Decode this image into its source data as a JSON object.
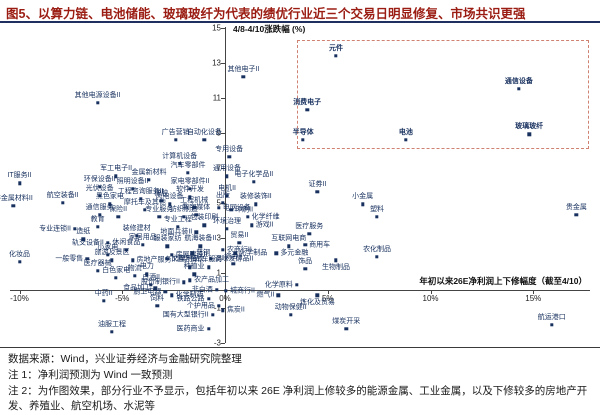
{
  "title": "图5、以算力链、电池储能、玻璃玻纤为代表的绩优行业近三个交易日明显修复、市场共识更强",
  "footer": {
    "source": "数据来源：Wind，兴业证券经济与金融研究院整理",
    "note1": "注 1：净利润预测为 Wind 一致预测",
    "note2": "注 2：为作图效果，部分行业不予显示，包括年初以来 26E 净利润上修较多的能源金属、工业金属，以及下修较多的房地产开发、养殖业、航空机场、水泥等"
  },
  "colors": {
    "title_red": "#9a1c12",
    "rule_navy": "#1f3060",
    "dot_navy": "#17305e",
    "box_dash": "#cf8272"
  },
  "chart_data": {
    "type": "scatter",
    "xlabel": "年初以来26E净利润上下修幅度（截至4/10）",
    "ylabel": "4/8-4/10涨跌幅 (%)",
    "xlim": [
      -11,
      18
    ],
    "ylim": [
      -3.5,
      15
    ],
    "x_ticks": [
      {
        "v": -10,
        "label": "-10%"
      },
      {
        "v": -5,
        "label": "-5%"
      },
      {
        "v": 0,
        "label": "0%"
      },
      {
        "v": 5,
        "label": "5%"
      },
      {
        "v": 10,
        "label": "10%"
      },
      {
        "v": 15,
        "label": "15%"
      }
    ],
    "y_ticks": [
      15,
      13,
      11,
      9,
      7,
      5,
      3,
      1,
      -1,
      -3
    ],
    "grid": false,
    "highlight_box": {
      "x_min": 3.5,
      "x_max": 17.6,
      "y_min": 8.2,
      "y_max": 14.3
    },
    "highlighted_industries": [
      "元件",
      "通信设备",
      "消费电子",
      "半导体",
      "电池",
      "玻璃玻纤"
    ],
    "points": [
      [
        "元件",
        5.4,
        13.4
      ],
      [
        "通信设备",
        14.3,
        11.5
      ],
      [
        "消费电子",
        4.0,
        10.3
      ],
      [
        "半导体",
        3.8,
        8.6
      ],
      [
        "电池",
        8.8,
        8.6
      ],
      [
        "玻璃玻纤",
        14.8,
        8.9
      ],
      [
        "其他电子II",
        0.9,
        12.2
      ],
      [
        "其他电源设备II",
        -6.2,
        10.7
      ],
      [
        "广告营销",
        -2.4,
        8.6
      ],
      [
        "自动化设备",
        -1.0,
        8.6
      ],
      [
        "计算机设备",
        -2.2,
        7.2
      ],
      [
        "专用设备",
        0.2,
        7.6
      ],
      [
        "军工电子II",
        -5.3,
        6.5
      ],
      [
        "汽车零部件",
        -1.8,
        6.7
      ],
      [
        "金属新材料",
        -3.7,
        6.3
      ],
      [
        "通用设备",
        0.1,
        6.5
      ],
      [
        "IT服务II",
        -10.0,
        6.1
      ],
      [
        "环保设备II",
        -6.1,
        5.9
      ],
      [
        "照明设备II",
        -4.5,
        5.8
      ],
      [
        "家电零部件II",
        -1.7,
        5.8
      ],
      [
        "电子化学品II",
        1.4,
        6.2
      ],
      [
        "电机II",
        0.1,
        5.4
      ],
      [
        "工程咨询服务II",
        -4.1,
        5.2
      ],
      [
        "软件开发",
        -1.7,
        5.3
      ],
      [
        "光伏设备",
        -6.1,
        5.4
      ],
      [
        "航空装备II",
        -7.9,
        5.0
      ],
      [
        "非金属材料II",
        -10.3,
        4.8
      ],
      [
        "黑色家电",
        -5.6,
        4.9
      ],
      [
        "橡胶",
        -3.1,
        5.1
      ],
      [
        "风电设备",
        -2.7,
        4.9
      ],
      [
        "出版",
        -0.1,
        5.0
      ],
      [
        "电网设备",
        -0.3,
        4.7,
        "r"
      ],
      [
        "装修装饰II",
        1.5,
        4.9
      ],
      [
        "通信服务",
        -6.1,
        4.3
      ],
      [
        "保险II",
        -5.2,
        4.2
      ],
      [
        "摩托车及其他",
        -3.9,
        4.6
      ],
      [
        "工程机械",
        -1.5,
        4.7
      ],
      [
        "印刷II",
        0.3,
        4.6,
        "r"
      ],
      [
        "专业服务",
        -3.2,
        4.2
      ],
      [
        "纺织制造",
        -2.0,
        4.2
      ],
      [
        "数字媒体",
        -1.4,
        4.3
      ],
      [
        "化学纤维",
        1.1,
        4.2,
        "r"
      ],
      [
        "专业连锁II",
        -7.3,
        3.5,
        "l"
      ],
      [
        "教育",
        -6.2,
        3.6
      ],
      [
        "环境治理",
        0.1,
        3.5
      ],
      [
        "游戏II",
        1.3,
        3.7,
        "r"
      ],
      [
        "专业工程",
        -2.3,
        3.6
      ],
      [
        "包装印刷",
        -1.0,
        3.7
      ],
      [
        "证券II",
        4.5,
        5.6
      ],
      [
        "小金属",
        6.7,
        4.9
      ],
      [
        "塑料",
        7.4,
        4.2
      ],
      [
        "医疗服务",
        4.1,
        3.2
      ],
      [
        "造纸",
        -6.9,
        2.9
      ],
      [
        "轨交设备II",
        -5.7,
        2.7,
        "l"
      ],
      [
        "装修建材",
        -4.3,
        3.1
      ],
      [
        "地面兵装II",
        -1.4,
        3.3,
        "l"
      ],
      [
        "贸易II",
        0.7,
        2.7
      ],
      [
        "互联网电商",
        3.1,
        2.5
      ],
      [
        "农商行II",
        -0.1,
        2.3,
        "r"
      ],
      [
        "化学制品",
        0.5,
        2.1,
        "r"
      ],
      [
        "多元金融",
        2.5,
        2.1,
        "r"
      ],
      [
        "服装家纺",
        -2.8,
        2.5
      ],
      [
        "航海装备II",
        -1.2,
        2.5
      ],
      [
        "房屋建设II",
        -2.6,
        2.0,
        "r"
      ],
      [
        "普钢",
        -1.6,
        2.1,
        "r"
      ],
      [
        "调味发酵品II",
        -0.7,
        1.8,
        "r"
      ],
      [
        "综合II",
        0.4,
        1.5
      ],
      [
        "家居用品",
        -4.0,
        2.6
      ],
      [
        "休闲食品",
        -4.8,
        2.3
      ],
      [
        "小家电",
        -5.7,
        2.0
      ],
      [
        "一般零售",
        -6.7,
        1.8,
        "l"
      ],
      [
        "旅游及景区",
        -5.5,
        1.7
      ],
      [
        "房地产服务II",
        -4.5,
        1.7,
        "r"
      ],
      [
        "文娱用品",
        -2.8,
        1.8,
        "r"
      ],
      [
        "酒店餐饮",
        -1.7,
        1.3
      ],
      [
        "汽车服务",
        -0.8,
        1.3
      ],
      [
        "饰品",
        3.9,
        1.2
      ],
      [
        "生物制品",
        5.4,
        1.7,
        "b"
      ],
      [
        "商用车",
        3.9,
        2.6,
        "r"
      ],
      [
        "农化制品",
        7.4,
        1.9
      ],
      [
        "贵金属",
        17.1,
        4.3
      ],
      [
        "医疗器械",
        -6.2,
        1.1
      ],
      [
        "白色家电",
        -5.3,
        0.7
      ],
      [
        "物流",
        -4.4,
        0.8
      ],
      [
        "电力",
        -3.8,
        0.9
      ],
      [
        "种植业",
        -1.5,
        0.9
      ],
      [
        "农产品加工",
        -1.7,
        0.55,
        "r"
      ],
      [
        "股份制银行II",
        -2.0,
        0.45,
        "l"
      ],
      [
        "白酒II",
        -3.6,
        0.3
      ],
      [
        "食品加工",
        -3.4,
        0.1,
        "l"
      ],
      [
        "化妆品",
        -10.0,
        1.6
      ],
      [
        "中药II",
        -5.9,
        -0.6
      ],
      [
        "厨卫电器",
        -2.9,
        -0.1,
        "l"
      ],
      [
        "化学制药",
        -2.6,
        -0.3,
        "r"
      ],
      [
        "非白酒",
        -0.4,
        0.0,
        "l"
      ],
      [
        "城商行II",
        0.05,
        -0.05,
        "r"
      ],
      [
        "铁路公路",
        -0.8,
        -0.5,
        "l"
      ],
      [
        "饲料",
        -3.3,
        -0.9
      ],
      [
        "个护用品",
        -0.3,
        -0.9,
        "l"
      ],
      [
        "焦炭II",
        -0.1,
        -1.15,
        "r"
      ],
      [
        "国有大型银行II",
        -0.6,
        -1.4,
        "l"
      ],
      [
        "医药商业",
        -0.8,
        -2.2,
        "l"
      ],
      [
        "油服工程",
        -5.5,
        -2.4
      ],
      [
        "燃气II",
        2.6,
        -0.3,
        "l"
      ],
      [
        "化学原料",
        3.5,
        0.3,
        "l"
      ],
      [
        "炼化及贸易",
        4.5,
        -0.3,
        "b"
      ],
      [
        "动物保健II",
        3.2,
        -1.4
      ],
      [
        "煤炭开采",
        5.9,
        -2.2
      ],
      [
        "航运港口",
        15.9,
        -2.0
      ]
    ]
  }
}
